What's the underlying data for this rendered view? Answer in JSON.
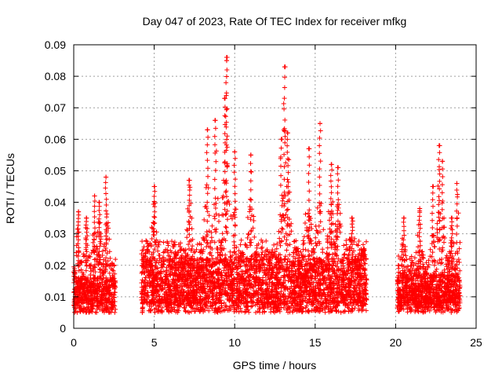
{
  "chart_data": {
    "type": "scatter",
    "title": "Day 047 of 2023, Rate Of TEC Index for receiver mfkg",
    "xlabel": "GPS time / hours",
    "ylabel": "ROTI / TECUs",
    "xlim": [
      0,
      25
    ],
    "ylim": [
      0,
      0.09
    ],
    "x_ticks": [
      "0",
      "5",
      "10",
      "15",
      "20",
      "25"
    ],
    "y_ticks": [
      "0",
      "0.01",
      "0.02",
      "0.03",
      "0.04",
      "0.05",
      "0.06",
      "0.07",
      "0.08",
      "0.09"
    ],
    "grid": true,
    "marker": "+",
    "series_color": "#ff0000",
    "data_segments": [
      {
        "x_start": 0.0,
        "x_end": 2.6,
        "y_base": [
          0.005,
          0.016
        ],
        "peaks": [
          [
            0.3,
            0.037
          ],
          [
            1.3,
            0.042
          ],
          [
            2.0,
            0.048
          ],
          [
            0.8,
            0.035
          ],
          [
            1.6,
            0.04
          ]
        ]
      },
      {
        "x_start": 4.2,
        "x_end": 18.2,
        "y_base": [
          0.005,
          0.022
        ],
        "peaks": [
          [
            5.0,
            0.045
          ],
          [
            7.2,
            0.047
          ],
          [
            8.3,
            0.063
          ],
          [
            8.8,
            0.066
          ],
          [
            9.4,
            0.073
          ],
          [
            9.5,
            0.086
          ],
          [
            9.5,
            0.085
          ],
          [
            10.0,
            0.056
          ],
          [
            11.0,
            0.055
          ],
          [
            12.9,
            0.06
          ],
          [
            13.1,
            0.083
          ],
          [
            13.3,
            0.062
          ],
          [
            14.6,
            0.057
          ],
          [
            15.3,
            0.065
          ],
          [
            16.0,
            0.052
          ],
          [
            16.4,
            0.051
          ],
          [
            17.3,
            0.035
          ],
          [
            18.0,
            0.025
          ]
        ]
      },
      {
        "x_start": 20.1,
        "x_end": 24.0,
        "y_base": [
          0.005,
          0.017
        ],
        "peaks": [
          [
            20.5,
            0.035
          ],
          [
            21.5,
            0.038
          ],
          [
            22.3,
            0.045
          ],
          [
            22.7,
            0.058
          ],
          [
            22.9,
            0.053
          ],
          [
            23.8,
            0.046
          ],
          [
            23.5,
            0.035
          ]
        ]
      }
    ]
  }
}
